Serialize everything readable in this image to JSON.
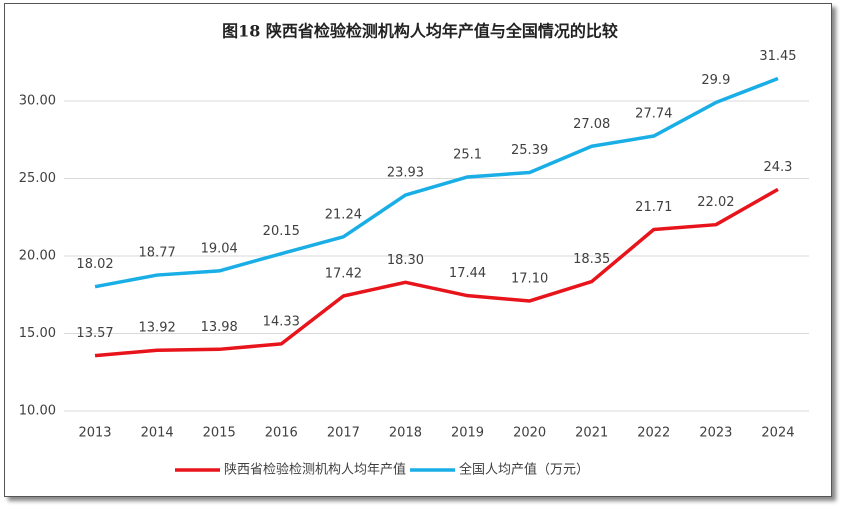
{
  "chart_data": {
    "type": "line",
    "title": "图18  陕西省检验检测机构人均年产值与全国情况的比较",
    "categories": [
      "2013",
      "2014",
      "2015",
      "2016",
      "2017",
      "2018",
      "2019",
      "2020",
      "2021",
      "2022",
      "2023",
      "2024"
    ],
    "series": [
      {
        "name": "陕西省检验检测机构人均年产值",
        "color": "#e8141b",
        "values": [
          13.57,
          13.92,
          13.98,
          14.33,
          17.42,
          18.3,
          17.44,
          17.1,
          18.35,
          21.71,
          22.02,
          24.3
        ],
        "value_labels": [
          "13.57",
          "13.92",
          "13.98",
          "14.33",
          "17.42",
          "18.30",
          "17.44",
          "17.10",
          "18.35",
          "21.71",
          "22.02",
          "24.3"
        ]
      },
      {
        "name": "全国人均产值（万元）",
        "color": "#1aaee6",
        "values": [
          18.02,
          18.77,
          19.04,
          20.15,
          21.24,
          23.93,
          25.1,
          25.39,
          27.08,
          27.74,
          29.9,
          31.45
        ]
      }
    ],
    "ylim": [
      10,
      32
    ],
    "yticks": [
      {
        "value": 10,
        "label": "10.00"
      },
      {
        "value": 15,
        "label": "15.00"
      },
      {
        "value": 20,
        "label": "20.00"
      },
      {
        "value": 25,
        "label": "25.00"
      },
      {
        "value": 30,
        "label": "30.00"
      }
    ],
    "grid": true,
    "legend": "bottom"
  }
}
